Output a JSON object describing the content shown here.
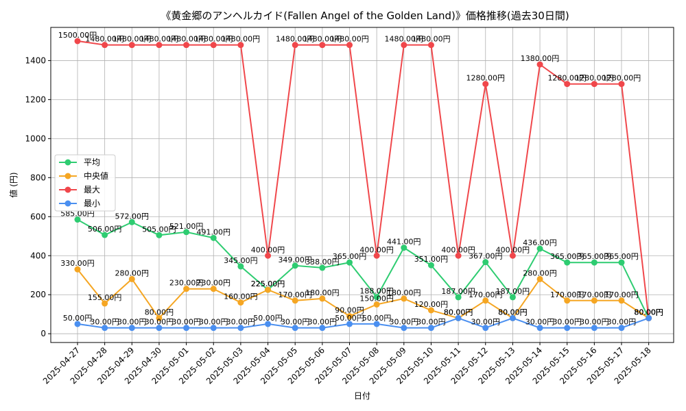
{
  "chart_data": {
    "type": "line",
    "title": "《黄金郷のアンヘルカイド(Fallen Angel of the Golden Land)》価格推移(過去30日間)",
    "xlabel": "日付",
    "ylabel": "値 (円)",
    "ylim": [
      -45,
      1570
    ],
    "yticks": [
      0,
      200,
      400,
      600,
      800,
      1000,
      1200,
      1400
    ],
    "grid": true,
    "legend_position": "center-left",
    "value_suffix": "円",
    "categories": [
      "2025-04-27",
      "2025-04-28",
      "2025-04-29",
      "2025-04-30",
      "2025-05-01",
      "2025-05-02",
      "2025-05-03",
      "2025-05-04",
      "2025-05-05",
      "2025-05-06",
      "2025-05-07",
      "2025-05-08",
      "2025-05-09",
      "2025-05-10",
      "2025-05-11",
      "2025-05-12",
      "2025-05-13",
      "2025-05-14",
      "2025-05-15",
      "2025-05-16",
      "2025-05-17",
      "2025-05-18"
    ],
    "series": [
      {
        "name": "平均",
        "color": "#2ecc71",
        "values": [
          585,
          506,
          572,
          505,
          521,
          491,
          345,
          225,
          349,
          338,
          365,
          188,
          441,
          351,
          187,
          367,
          187,
          436,
          365,
          365,
          365,
          80
        ]
      },
      {
        "name": "中央値",
        "color": "#f5a623",
        "values": [
          330,
          155,
          280,
          80,
          230,
          230,
          160,
          225,
          170,
          180,
          90,
          150,
          180,
          120,
          80,
          170,
          80,
          280,
          170,
          170,
          170,
          80
        ]
      },
      {
        "name": "最大",
        "color": "#f0474b",
        "values": [
          1500,
          1480,
          1480,
          1480,
          1480,
          1480,
          1480,
          400,
          1480,
          1480,
          1480,
          400,
          1480,
          1480,
          400,
          1280,
          400,
          1380,
          1280,
          1280,
          1280,
          80
        ]
      },
      {
        "name": "最小",
        "color": "#4a8ff0",
        "values": [
          50,
          30,
          30,
          30,
          30,
          30,
          30,
          50,
          30,
          30,
          50,
          50,
          30,
          30,
          80,
          30,
          80,
          30,
          30,
          30,
          30,
          80
        ]
      }
    ]
  }
}
